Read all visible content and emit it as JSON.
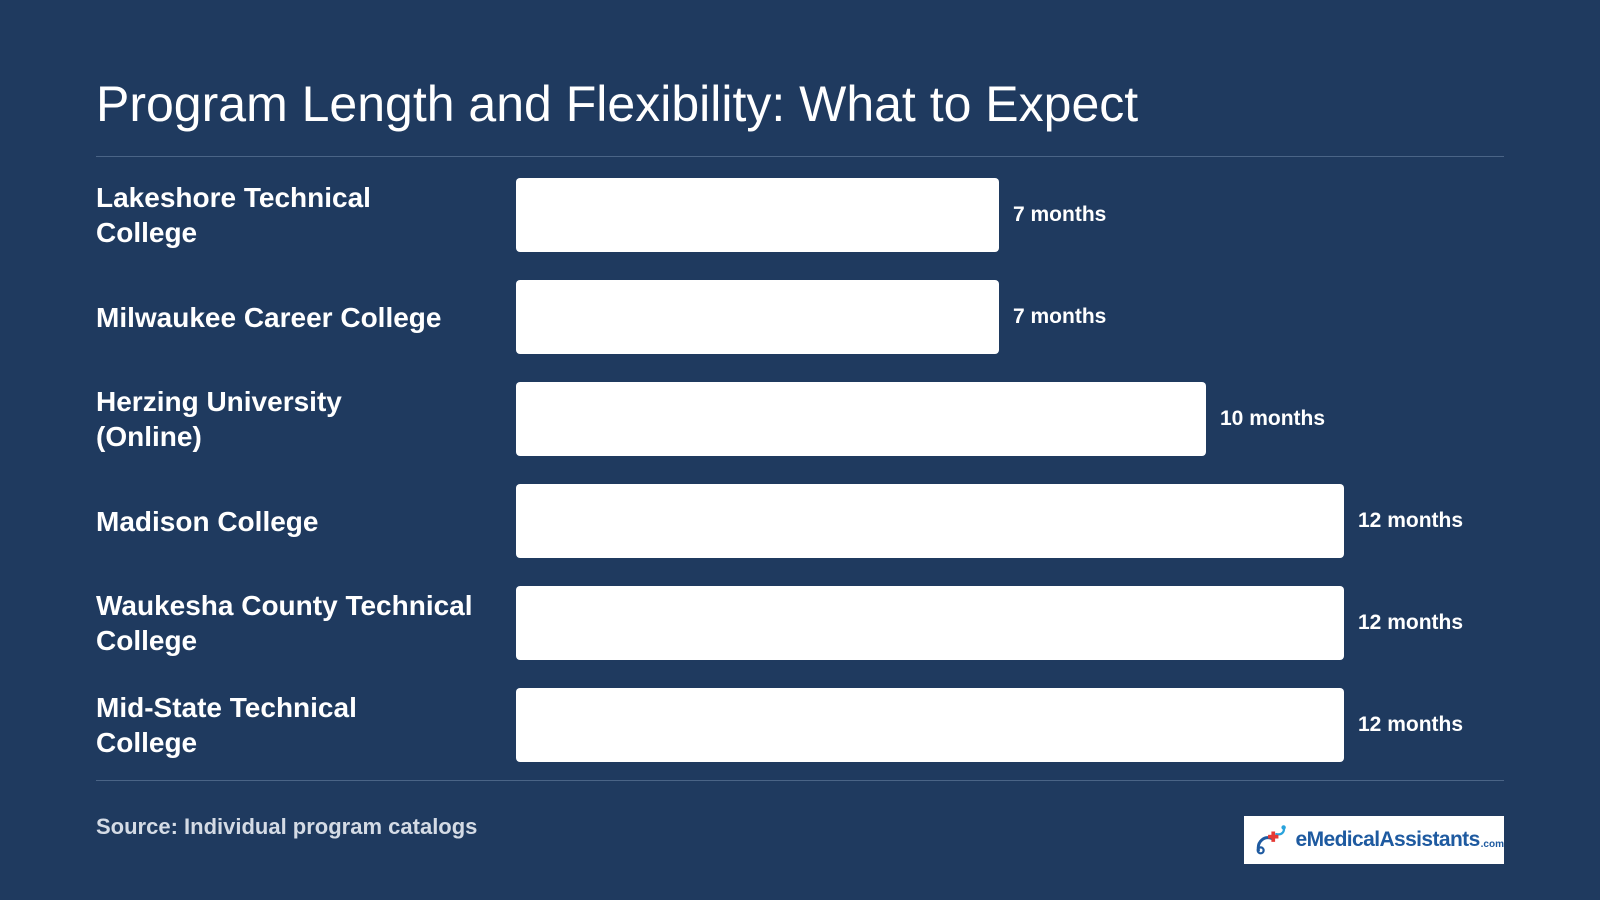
{
  "chart_data": {
    "type": "bar",
    "orientation": "horizontal",
    "title": "Program Length and Flexibility: What to Expect",
    "categories": [
      "Lakeshore Technical College",
      "Milwaukee Career College",
      "Herzing University (Online)",
      "Madison College",
      "Waukesha County Technical College",
      "Mid-State Technical College"
    ],
    "values": [
      7,
      7,
      10,
      12,
      12,
      12
    ],
    "value_labels": [
      "7 months",
      "7 months",
      "10 months",
      "12 months",
      "12 months",
      "12 months"
    ],
    "unit": "months",
    "xlim": [
      0,
      12
    ],
    "grid": false,
    "bar_color": "#ffffff"
  },
  "footer": {
    "source": "Source: Individual program catalogs",
    "logo_text": "eMedicalAssistants",
    "logo_suffix": ".com"
  },
  "colors": {
    "background": "#1f3a5f",
    "bar": "#ffffff",
    "text": "#ffffff",
    "logo_blue": "#1e5aa0",
    "logo_red": "#e53935"
  }
}
